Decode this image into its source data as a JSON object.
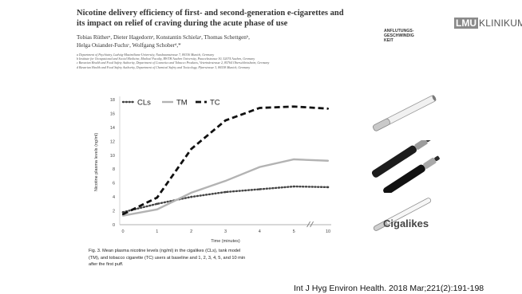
{
  "paper": {
    "title_line1": "Nicotine delivery efficiency of first- and second-generation e-cigarettes and",
    "title_line2": "its impact on relief of craving during the acute phase of use",
    "authors_line1": "Tobias Rütherᵃ, Dieter Hagedornᵃ, Konstantin Schielaᵃ, Thomas Schettgenᵇ,",
    "authors_line2": "Helga Osiander-Fuchsᶜ, Wolfgang Schoberᵈ,*",
    "affiliations": [
      "a Department of Psychiatry, Ludwig-Maximilians-University, Nussbaumstrasse 7, 80336 Munich, Germany",
      "b Institute for Occupational and Social Medicine, Medical Faculty, RWTH Aachen University, Pauwelsstrasse 30, 52074 Aachen, Germany",
      "c Bavarian Health and Food Safety Authority, Department of Cosmetics and Tobacco Products, Veterinärstrasse 2, 85764 Oberschleissheim, Germany",
      "d Bavarian Health and Food Safety Authority, Department of Chemical Safety and Toxicology, Pfarrstrasse 3, 80538 Munich, Germany"
    ]
  },
  "side_label": [
    "ANFLUTUNGS-",
    "GESCHWINDIG",
    "KEIT"
  ],
  "logo": {
    "box": "LMU",
    "text": "KLINIKUM"
  },
  "cigalikes_label": "Cigalikes",
  "caption": [
    "Fig. 3. Mean plasma nicotine levels (ng/ml) in the cigalikes (CLs), tank model",
    "(TM), and tobacco cigarette (TC) users at baseline and 1, 2, 3, 4, 5, and 10 min",
    "after the first puff."
  ],
  "citation": "Int J Hyg Environ Health. 2018 Mar;221(2):191-198",
  "chart_data": {
    "type": "line",
    "x": [
      0,
      1,
      2,
      3,
      4,
      5,
      10
    ],
    "x_tick_labels": [
      "0",
      "1",
      "2",
      "3",
      "4",
      "5",
      "10"
    ],
    "x_axis_break": "between 5 and 10",
    "xlabel": "Time (minutes)",
    "ylabel": "Nicotine plasma levels (ng/ml)",
    "ylim": [
      0,
      18
    ],
    "y_ticks": [
      0,
      2,
      4,
      6,
      8,
      10,
      12,
      14,
      16,
      18
    ],
    "legend_position": "top-left",
    "grid": false,
    "series": [
      {
        "name": "CLs",
        "style": "dotted",
        "color": "#444444",
        "values": [
          1.8,
          3.0,
          4.0,
          4.7,
          5.1,
          5.5,
          5.4
        ]
      },
      {
        "name": "TM",
        "style": "solid",
        "color": "#b3b3b3",
        "values": [
          1.3,
          2.2,
          4.6,
          6.3,
          8.3,
          9.4,
          9.2
        ]
      },
      {
        "name": "TC",
        "style": "dashed",
        "color": "#111111",
        "values": [
          1.5,
          3.9,
          10.9,
          15.0,
          16.8,
          17.0,
          16.7
        ]
      }
    ]
  }
}
